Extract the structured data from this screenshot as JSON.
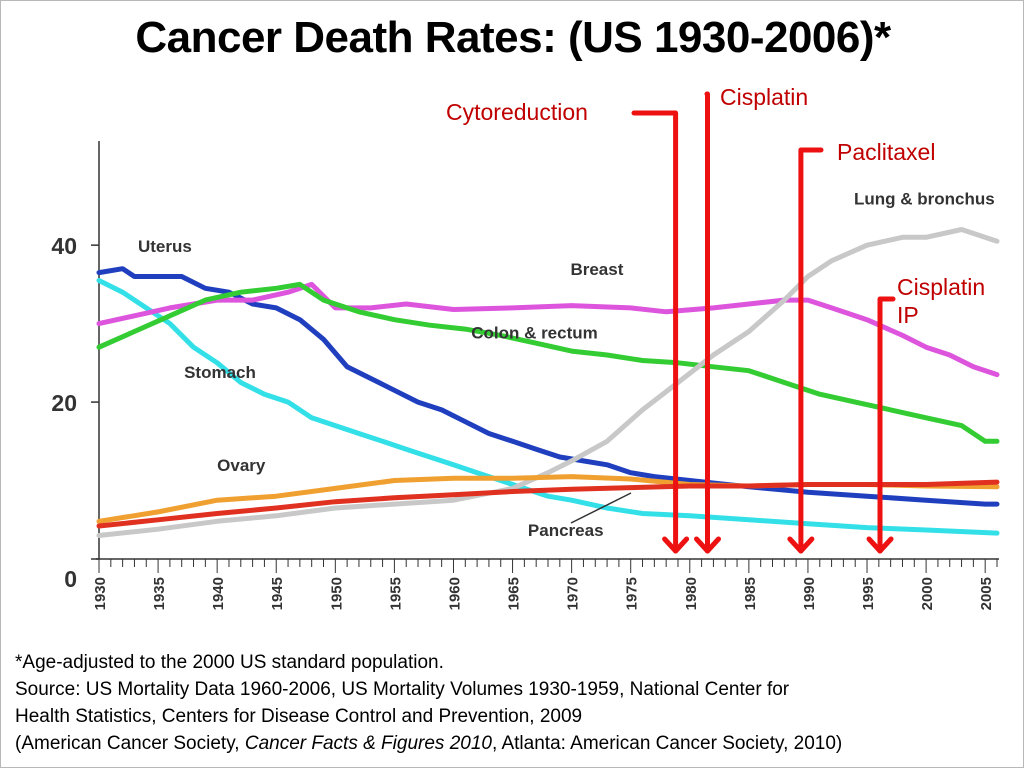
{
  "title": "Cancer Death Rates:  (US 1930-2006)*",
  "chart_data": {
    "type": "line",
    "title": "Cancer Death Rates:  (US 1930-2006)*",
    "xlabel": "",
    "ylabel": "",
    "xlim": [
      1930,
      2006
    ],
    "ylim": [
      0,
      52
    ],
    "x_ticks": [
      1930,
      1935,
      1940,
      1945,
      1950,
      1955,
      1960,
      1965,
      1970,
      1975,
      1980,
      1985,
      1990,
      1995,
      2000,
      2005
    ],
    "y_ticks": [
      0,
      20,
      40
    ],
    "grid": false,
    "series": [
      {
        "name": "Uterus",
        "color": "#1f3fbf",
        "points": [
          [
            1930,
            36.5
          ],
          [
            1932,
            37
          ],
          [
            1933,
            36
          ],
          [
            1935,
            36
          ],
          [
            1937,
            36
          ],
          [
            1939,
            34.5
          ],
          [
            1941,
            34
          ],
          [
            1943,
            32.5
          ],
          [
            1945,
            32
          ],
          [
            1947,
            30.5
          ],
          [
            1949,
            28
          ],
          [
            1951,
            24.5
          ],
          [
            1953,
            23
          ],
          [
            1955,
            21.5
          ],
          [
            1957,
            20
          ],
          [
            1959,
            19
          ],
          [
            1961,
            17.5
          ],
          [
            1963,
            16
          ],
          [
            1965,
            15
          ],
          [
            1967,
            14
          ],
          [
            1969,
            13
          ],
          [
            1971,
            12.5
          ],
          [
            1973,
            12
          ],
          [
            1975,
            11
          ],
          [
            1977,
            10.5
          ],
          [
            1980,
            10
          ],
          [
            1985,
            9.2
          ],
          [
            1990,
            8.5
          ],
          [
            1995,
            8
          ],
          [
            2000,
            7.5
          ],
          [
            2005,
            7
          ],
          [
            2006,
            7
          ]
        ]
      },
      {
        "name": "Stomach",
        "color": "#33e0e8",
        "points": [
          [
            1930,
            35.5
          ],
          [
            1932,
            34
          ],
          [
            1934,
            32
          ],
          [
            1936,
            30
          ],
          [
            1938,
            27
          ],
          [
            1940,
            25
          ],
          [
            1942,
            22.5
          ],
          [
            1944,
            21
          ],
          [
            1946,
            20
          ],
          [
            1948,
            18
          ],
          [
            1950,
            17
          ],
          [
            1952,
            16
          ],
          [
            1954,
            15
          ],
          [
            1956,
            14
          ],
          [
            1958,
            13
          ],
          [
            1960,
            12
          ],
          [
            1962,
            11
          ],
          [
            1964,
            10
          ],
          [
            1966,
            9
          ],
          [
            1968,
            8
          ],
          [
            1970,
            7.5
          ],
          [
            1973,
            6.5
          ],
          [
            1976,
            5.8
          ],
          [
            1980,
            5.5
          ],
          [
            1985,
            5
          ],
          [
            1990,
            4.5
          ],
          [
            1995,
            4
          ],
          [
            2000,
            3.7
          ],
          [
            2006,
            3.3
          ]
        ]
      },
      {
        "name": "Breast",
        "color": "#dd55dd",
        "points": [
          [
            1930,
            30
          ],
          [
            1933,
            31
          ],
          [
            1936,
            32
          ],
          [
            1940,
            33
          ],
          [
            1943,
            33
          ],
          [
            1946,
            34
          ],
          [
            1948,
            35
          ],
          [
            1950,
            32
          ],
          [
            1953,
            32
          ],
          [
            1956,
            32.5
          ],
          [
            1960,
            31.8
          ],
          [
            1965,
            32
          ],
          [
            1970,
            32.3
          ],
          [
            1975,
            32
          ],
          [
            1978,
            31.5
          ],
          [
            1982,
            32
          ],
          [
            1985,
            32.5
          ],
          [
            1988,
            33
          ],
          [
            1990,
            33
          ],
          [
            1992,
            32
          ],
          [
            1995,
            30.5
          ],
          [
            1998,
            28.5
          ],
          [
            2000,
            27
          ],
          [
            2002,
            26
          ],
          [
            2004,
            24.5
          ],
          [
            2006,
            23.5
          ]
        ]
      },
      {
        "name": "Colon & rectum",
        "color": "#33cc33",
        "points": [
          [
            1930,
            27
          ],
          [
            1933,
            29
          ],
          [
            1936,
            31
          ],
          [
            1939,
            33
          ],
          [
            1942,
            34
          ],
          [
            1945,
            34.5
          ],
          [
            1947,
            35
          ],
          [
            1949,
            33
          ],
          [
            1952,
            31.5
          ],
          [
            1955,
            30.5
          ],
          [
            1958,
            29.8
          ],
          [
            1961,
            29.3
          ],
          [
            1964,
            28.5
          ],
          [
            1967,
            27.5
          ],
          [
            1970,
            26.5
          ],
          [
            1973,
            26
          ],
          [
            1976,
            25.3
          ],
          [
            1979,
            25
          ],
          [
            1982,
            24.5
          ],
          [
            1985,
            24
          ],
          [
            1988,
            22.5
          ],
          [
            1991,
            21
          ],
          [
            1994,
            20
          ],
          [
            1997,
            19
          ],
          [
            2000,
            18
          ],
          [
            2003,
            17
          ],
          [
            2005,
            15
          ],
          [
            2006,
            15
          ]
        ]
      },
      {
        "name": "Lung & bronchus",
        "color": "#c8c8c8",
        "points": [
          [
            1930,
            3
          ],
          [
            1935,
            3.8
          ],
          [
            1940,
            4.8
          ],
          [
            1945,
            5.5
          ],
          [
            1950,
            6.5
          ],
          [
            1955,
            7
          ],
          [
            1960,
            7.5
          ],
          [
            1965,
            9
          ],
          [
            1968,
            11
          ],
          [
            1970,
            12.5
          ],
          [
            1973,
            15
          ],
          [
            1976,
            19
          ],
          [
            1979,
            22.5
          ],
          [
            1982,
            26
          ],
          [
            1985,
            29
          ],
          [
            1988,
            33
          ],
          [
            1990,
            36
          ],
          [
            1992,
            38
          ],
          [
            1995,
            40
          ],
          [
            1998,
            41
          ],
          [
            2000,
            41
          ],
          [
            2003,
            42
          ],
          [
            2006,
            40.5
          ]
        ]
      },
      {
        "name": "Ovary",
        "color": "#f0a030",
        "points": [
          [
            1930,
            4.8
          ],
          [
            1935,
            6
          ],
          [
            1940,
            7.5
          ],
          [
            1945,
            8
          ],
          [
            1950,
            9
          ],
          [
            1955,
            10
          ],
          [
            1960,
            10.3
          ],
          [
            1965,
            10.3
          ],
          [
            1970,
            10.5
          ],
          [
            1975,
            10.2
          ],
          [
            1980,
            9.5
          ],
          [
            1985,
            9.3
          ],
          [
            1990,
            9.5
          ],
          [
            1995,
            9.5
          ],
          [
            2000,
            9.3
          ],
          [
            2006,
            9.2
          ]
        ]
      },
      {
        "name": "Pancreas",
        "color": "#e03020",
        "points": [
          [
            1930,
            4.2
          ],
          [
            1935,
            5
          ],
          [
            1940,
            5.8
          ],
          [
            1945,
            6.5
          ],
          [
            1950,
            7.3
          ],
          [
            1955,
            7.8
          ],
          [
            1960,
            8.2
          ],
          [
            1965,
            8.6
          ],
          [
            1970,
            8.9
          ],
          [
            1975,
            9.1
          ],
          [
            1980,
            9.3
          ],
          [
            1985,
            9.3
          ],
          [
            1990,
            9.5
          ],
          [
            1995,
            9.5
          ],
          [
            2000,
            9.5
          ],
          [
            2006,
            9.8
          ]
        ]
      }
    ],
    "series_labels": [
      {
        "name": "Uterus",
        "x": 1933.3,
        "y": 39.1
      },
      {
        "name": "Stomach",
        "x": 1937.2,
        "y": 23.1
      },
      {
        "name": "Breast",
        "x": 1969.9,
        "y": 36.2
      },
      {
        "name": "Colon & rectum",
        "x": 1961.5,
        "y": 28.1
      },
      {
        "name": "Lung & bronchus",
        "x": 1993.9,
        "y": 45.2
      },
      {
        "name": "Ovary",
        "x": 1940,
        "y": 11.2
      },
      {
        "name": "Pancreas",
        "x": 1966.3,
        "y": 2.9
      }
    ],
    "annotations": [
      {
        "id": "cytoreduction",
        "label": "Cytoreduction",
        "x": 1978.8
      },
      {
        "id": "cisplatin",
        "label": "Cisplatin",
        "x": 1981.5
      },
      {
        "id": "paclitaxel",
        "label": "Paclitaxel",
        "x": 1989.4
      },
      {
        "id": "cisplatin-ip",
        "label": "Cisplatin IP",
        "label_lines": [
          "Cisplatin",
          "IP"
        ],
        "x": 1996.1
      }
    ]
  },
  "footnote": {
    "line1": "*Age-adjusted to the 2000 US standard population.",
    "line2": "Source:  US Mortality Data 1960-2006, US Mortality Volumes 1930-1959, National Center for",
    "line3": "Health Statistics, Centers for Disease Control and Prevention, 2009",
    "line4_pre": "(American Cancer Society, ",
    "line4_italic": "Cancer Facts & Figures 2010",
    "line4_post": ", Atlanta: American Cancer Society, 2010)"
  }
}
